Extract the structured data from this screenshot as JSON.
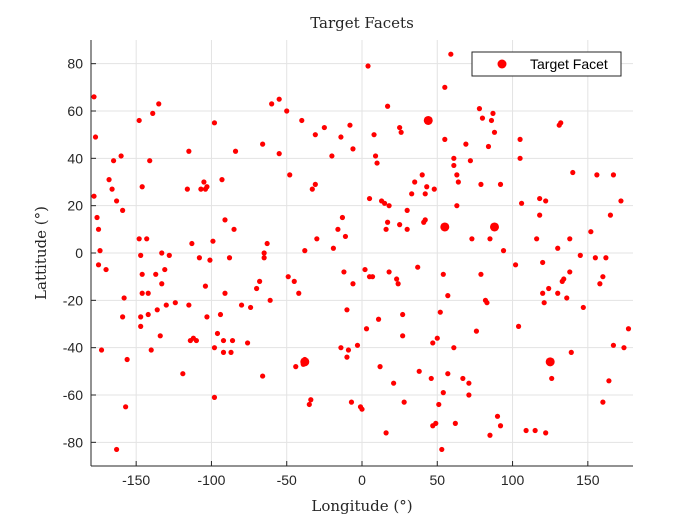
{
  "chart_data": {
    "type": "scatter",
    "title": "Target Facets",
    "xlabel": "Longitude (°)",
    "ylabel": "Lattitude (°)",
    "xlim": [
      -180,
      180
    ],
    "ylim": [
      -90,
      90
    ],
    "xticks": [
      -150,
      -100,
      -50,
      0,
      50,
      100,
      150
    ],
    "yticks": [
      -80,
      -60,
      -40,
      -20,
      0,
      20,
      40,
      60,
      80
    ],
    "grid": true,
    "legend": {
      "position": "top-right",
      "entries": [
        "Target Facet"
      ]
    },
    "marker_color": "#ff0000",
    "series": [
      {
        "name": "Target Facet",
        "points": [
          [
            -178,
            66
          ],
          [
            -177,
            49
          ],
          [
            -175,
            -5
          ],
          [
            -178,
            24
          ],
          [
            -176,
            15
          ],
          [
            -175,
            10
          ],
          [
            -174,
            1
          ],
          [
            -173,
            -41
          ],
          [
            -170,
            -7
          ],
          [
            -168,
            31
          ],
          [
            -166,
            27
          ],
          [
            -165,
            39
          ],
          [
            -163,
            22
          ],
          [
            -163,
            -83
          ],
          [
            -160,
            41
          ],
          [
            -159,
            18
          ],
          [
            -159,
            -27
          ],
          [
            -158,
            -19
          ],
          [
            -157,
            -65
          ],
          [
            -156,
            -45
          ],
          [
            -148,
            56
          ],
          [
            -148,
            6
          ],
          [
            -147,
            -1
          ],
          [
            -146,
            28
          ],
          [
            -146,
            -9
          ],
          [
            -146,
            -17
          ],
          [
            -147,
            -27
          ],
          [
            -147,
            -31
          ],
          [
            -143,
            6
          ],
          [
            -142,
            -17
          ],
          [
            -142,
            -26
          ],
          [
            -141,
            39
          ],
          [
            -140,
            -41
          ],
          [
            -139,
            59
          ],
          [
            -137,
            -9
          ],
          [
            -136,
            -24
          ],
          [
            -135,
            63
          ],
          [
            -134,
            -35
          ],
          [
            -133,
            0
          ],
          [
            -133,
            -13
          ],
          [
            -131,
            -7
          ],
          [
            -130,
            -22
          ],
          [
            -128,
            -1
          ],
          [
            -124,
            -21
          ],
          [
            -119,
            -51
          ],
          [
            -116,
            27
          ],
          [
            -115,
            43
          ],
          [
            -115,
            -22
          ],
          [
            -114,
            -37
          ],
          [
            -113,
            4
          ],
          [
            -112,
            -36
          ],
          [
            -110,
            -37
          ],
          [
            -108,
            -2
          ],
          [
            -107,
            27
          ],
          [
            -105,
            30
          ],
          [
            -104,
            27
          ],
          [
            -104,
            -14
          ],
          [
            -103,
            28
          ],
          [
            -103,
            -27
          ],
          [
            -101,
            -3
          ],
          [
            -99,
            5
          ],
          [
            -98,
            55
          ],
          [
            -98,
            -40
          ],
          [
            -98,
            -61
          ],
          [
            -96,
            -34
          ],
          [
            -94,
            -26
          ],
          [
            -93,
            31
          ],
          [
            -92,
            -37
          ],
          [
            -92,
            -42
          ],
          [
            -91,
            14
          ],
          [
            -91,
            -17
          ],
          [
            -88,
            -2
          ],
          [
            -87,
            -42
          ],
          [
            -86,
            -37
          ],
          [
            -84,
            43
          ],
          [
            -85,
            10
          ],
          [
            -80,
            -22
          ],
          [
            -76,
            -38
          ],
          [
            -74,
            -23
          ],
          [
            -70,
            -15
          ],
          [
            -68,
            -12
          ],
          [
            -66,
            -52
          ],
          [
            -66,
            46
          ],
          [
            -65,
            0
          ],
          [
            -65,
            -2
          ],
          [
            -63,
            4
          ],
          [
            -61,
            -20
          ],
          [
            -60,
            63
          ],
          [
            -55,
            42
          ],
          [
            -55,
            65
          ],
          [
            -50,
            60
          ],
          [
            -49,
            -10
          ],
          [
            -48,
            33
          ],
          [
            -45,
            -12
          ],
          [
            -44,
            -48
          ],
          [
            -42,
            -17
          ],
          [
            -40,
            56
          ],
          [
            -39,
            -47
          ],
          [
            -38,
            -45
          ],
          [
            -38,
            1
          ],
          [
            -35,
            -64
          ],
          [
            -34,
            -62
          ],
          [
            -33,
            27
          ],
          [
            -31,
            29
          ],
          [
            -31,
            50
          ],
          [
            -30,
            6
          ],
          [
            -25,
            53
          ],
          [
            -20,
            41
          ],
          [
            -19,
            2
          ],
          [
            -16,
            10
          ],
          [
            -14,
            -40
          ],
          [
            -14,
            49
          ],
          [
            -13,
            15
          ],
          [
            -12,
            -8
          ],
          [
            -11,
            7
          ],
          [
            -10,
            -24
          ],
          [
            -10,
            -44
          ],
          [
            -9,
            -41
          ],
          [
            -8,
            54
          ],
          [
            -7,
            -63
          ],
          [
            -6,
            44
          ],
          [
            -6,
            -13
          ],
          [
            -3,
            -39
          ],
          [
            -1,
            -65
          ],
          [
            0,
            -66
          ],
          [
            2,
            -7
          ],
          [
            3,
            -32
          ],
          [
            4,
            79
          ],
          [
            5,
            23
          ],
          [
            5,
            -10
          ],
          [
            7,
            -10
          ],
          [
            8,
            50
          ],
          [
            9,
            41
          ],
          [
            10,
            38
          ],
          [
            11,
            -28
          ],
          [
            12,
            -48
          ],
          [
            13,
            22
          ],
          [
            15,
            21
          ],
          [
            16,
            10
          ],
          [
            16,
            -76
          ],
          [
            17,
            13
          ],
          [
            17,
            62
          ],
          [
            18,
            20
          ],
          [
            18,
            -8
          ],
          [
            21,
            -55
          ],
          [
            23,
            -11
          ],
          [
            24,
            -13
          ],
          [
            25,
            53
          ],
          [
            25,
            12
          ],
          [
            26,
            51
          ],
          [
            27,
            -26
          ],
          [
            27,
            -35
          ],
          [
            28,
            -63
          ],
          [
            30,
            18
          ],
          [
            30,
            10
          ],
          [
            33,
            25
          ],
          [
            35,
            30
          ],
          [
            37,
            -6
          ],
          [
            38,
            -50
          ],
          [
            40,
            33
          ],
          [
            41,
            13
          ],
          [
            42,
            14
          ],
          [
            42,
            25
          ],
          [
            43,
            28
          ],
          [
            44,
            56
          ],
          [
            46,
            -53
          ],
          [
            47,
            -38
          ],
          [
            47,
            -73
          ],
          [
            48,
            27
          ],
          [
            49,
            -72
          ],
          [
            50,
            -36
          ],
          [
            51,
            -64
          ],
          [
            52,
            -25
          ],
          [
            53,
            -83
          ],
          [
            54,
            -9
          ],
          [
            54,
            -59
          ],
          [
            55,
            48
          ],
          [
            55,
            70
          ],
          [
            55,
            11
          ],
          [
            57,
            -18
          ],
          [
            57,
            -51
          ],
          [
            59,
            84
          ],
          [
            61,
            -40
          ],
          [
            61,
            40
          ],
          [
            61,
            37
          ],
          [
            62,
            -72
          ],
          [
            63,
            33
          ],
          [
            63,
            20
          ],
          [
            64,
            30
          ],
          [
            67,
            -53
          ],
          [
            69,
            46
          ],
          [
            71,
            -55
          ],
          [
            71,
            -60
          ],
          [
            72,
            39
          ],
          [
            73,
            6
          ],
          [
            76,
            -33
          ],
          [
            78,
            61
          ],
          [
            79,
            29
          ],
          [
            79,
            -9
          ],
          [
            80,
            57
          ],
          [
            82,
            -20
          ],
          [
            83,
            -21
          ],
          [
            84,
            45
          ],
          [
            85,
            -77
          ],
          [
            85,
            6
          ],
          [
            86,
            56
          ],
          [
            87,
            59
          ],
          [
            88,
            11
          ],
          [
            88,
            51
          ],
          [
            90,
            -69
          ],
          [
            92,
            29
          ],
          [
            92,
            -73
          ],
          [
            94,
            1
          ],
          [
            102,
            -5
          ],
          [
            104,
            -31
          ],
          [
            105,
            48
          ],
          [
            105,
            40
          ],
          [
            106,
            21
          ],
          [
            109,
            -75
          ],
          [
            115,
            -75
          ],
          [
            116,
            6
          ],
          [
            118,
            23
          ],
          [
            118,
            16
          ],
          [
            120,
            -4
          ],
          [
            120,
            -17
          ],
          [
            121,
            -21
          ],
          [
            122,
            -76
          ],
          [
            122,
            22
          ],
          [
            124,
            -15
          ],
          [
            125,
            -46
          ],
          [
            126,
            -53
          ],
          [
            130,
            2
          ],
          [
            130,
            -17
          ],
          [
            131,
            54
          ],
          [
            132,
            55
          ],
          [
            133,
            -12
          ],
          [
            134,
            -11
          ],
          [
            136,
            -19
          ],
          [
            138,
            -8
          ],
          [
            138,
            6
          ],
          [
            139,
            -42
          ],
          [
            140,
            34
          ],
          [
            145,
            -1
          ],
          [
            147,
            -23
          ],
          [
            152,
            9
          ],
          [
            155,
            -2
          ],
          [
            156,
            33
          ],
          [
            158,
            -13
          ],
          [
            160,
            -63
          ],
          [
            160,
            -10
          ],
          [
            162,
            -2
          ],
          [
            164,
            -54
          ],
          [
            165,
            16
          ],
          [
            167,
            33
          ],
          [
            167,
            -39
          ],
          [
            172,
            22
          ],
          [
            174,
            -40
          ],
          [
            177,
            -32
          ]
        ],
        "large_points": [
          [
            44,
            56
          ],
          [
            55,
            11
          ],
          [
            88,
            11
          ],
          [
            125,
            -46
          ],
          [
            -38,
            -46
          ]
        ]
      }
    ]
  }
}
